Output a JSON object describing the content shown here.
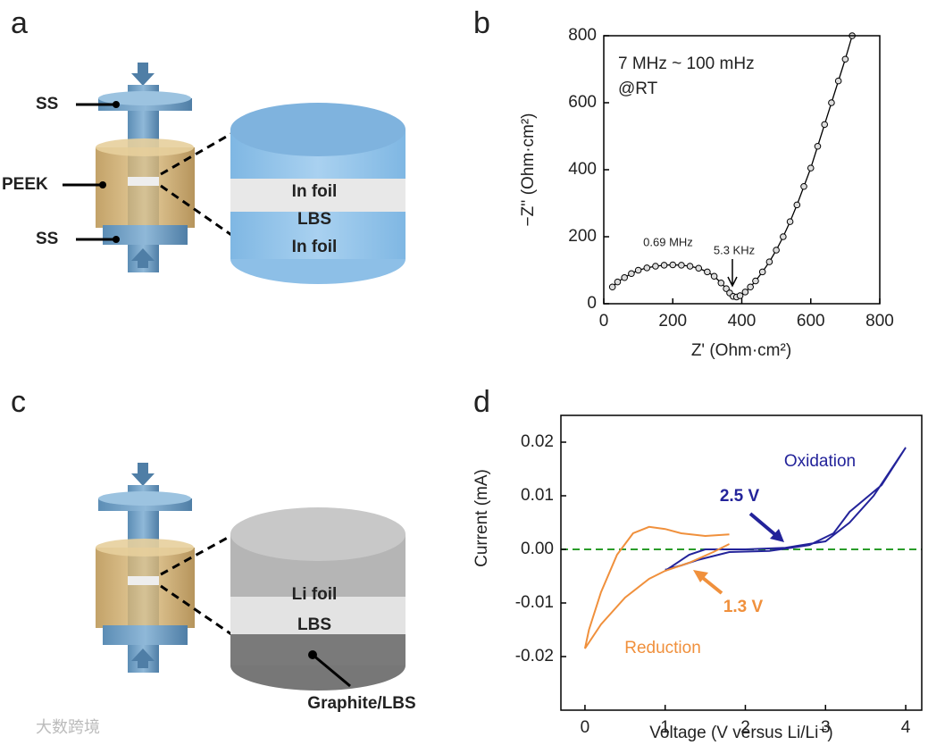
{
  "panel_labels": [
    "a",
    "b",
    "c",
    "d"
  ],
  "diagram_a": {
    "labels": [
      "SS",
      "PEEK",
      "SS"
    ],
    "layers": [
      "In foil",
      "LBS",
      "In foil"
    ]
  },
  "diagram_c": {
    "layers": [
      "Li foil",
      "LBS"
    ],
    "callout": "Graphite/LBS"
  },
  "watermark": "大数跨境",
  "chart_data": [
    {
      "type": "line",
      "marker": true,
      "color": "#000000",
      "xlabel": "Z' (Ohm·cm²)",
      "ylabel": "−Z'' (Ohm·cm²)",
      "annotations": [
        "7 MHz ~ 100 mHz",
        "@RT",
        "0.69 MHz",
        "5.3 KHz"
      ],
      "x": [
        25,
        40,
        60,
        80,
        100,
        125,
        150,
        175,
        200,
        225,
        250,
        275,
        300,
        320,
        340,
        355,
        365,
        375,
        385,
        395,
        410,
        425,
        440,
        460,
        480,
        500,
        520,
        540,
        560,
        580,
        600,
        620,
        640,
        660,
        680,
        700,
        720
      ],
      "values": [
        50,
        65,
        78,
        90,
        100,
        107,
        112,
        115,
        116,
        115,
        112,
        106,
        95,
        82,
        62,
        45,
        32,
        22,
        20,
        24,
        35,
        50,
        68,
        95,
        125,
        160,
        200,
        245,
        295,
        350,
        405,
        470,
        535,
        600,
        665,
        730,
        800
      ],
      "xlim": [
        0,
        800
      ],
      "ylim": [
        0,
        800
      ],
      "xticks": [
        0,
        200,
        400,
        600,
        800
      ],
      "yticks": [
        0,
        200,
        400,
        600,
        800
      ]
    },
    {
      "type": "line",
      "marker": false,
      "xlabel": "Voltage (V versus Li/Li⁺)",
      "ylabel": "Current (mA)",
      "annotations": [
        "2.5 V",
        "1.3 V"
      ],
      "hline": 0,
      "hline_color": "#2a9d2a",
      "series": [
        {
          "name": "Oxidation",
          "color": "#23239a",
          "x": [
            1.0,
            1.3,
            1.5,
            2.0,
            2.5,
            3.0,
            3.3,
            3.6,
            4.0,
            3.7,
            3.3,
            3.1,
            2.8,
            2.3,
            1.8,
            1.4,
            1.2,
            1.0
          ],
          "values": [
            -0.004,
            -0.001,
            0,
            0,
            0.0003,
            0.0015,
            0.005,
            0.01,
            0.019,
            0.012,
            0.007,
            0.003,
            0.0008,
            -0.0003,
            -0.0005,
            -0.002,
            -0.003,
            -0.0038
          ]
        },
        {
          "name": "Reduction",
          "color": "#f0903c",
          "x": [
            1.8,
            1.5,
            1.2,
            1.0,
            0.8,
            0.6,
            0.4,
            0.2,
            0.05,
            0,
            0.2,
            0.5,
            0.8,
            1.0,
            1.3,
            1.6,
            1.8
          ],
          "values": [
            0.0028,
            0.0025,
            0.003,
            0.0038,
            0.0042,
            0.003,
            -0.001,
            -0.008,
            -0.015,
            -0.0185,
            -0.014,
            -0.009,
            -0.0055,
            -0.004,
            -0.0025,
            -0.0005,
            0.001
          ]
        }
      ],
      "xlim": [
        -0.3,
        4.2
      ],
      "ylim": [
        -0.03,
        0.025
      ],
      "xticks": [
        0,
        1,
        2,
        3,
        4
      ],
      "yticks": [
        -0.02,
        -0.01,
        {
          "value": 0,
          "label": "0.00"
        },
        0.01,
        0.02
      ]
    }
  ]
}
